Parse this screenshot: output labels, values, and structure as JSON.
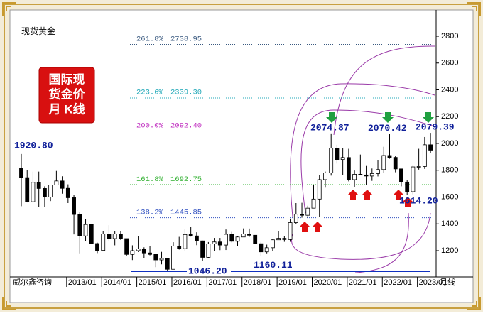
{
  "chart_data": {
    "type": "candlestick",
    "title": "现货黄金",
    "badge": [
      "国际现",
      "货金价",
      "月 K线"
    ],
    "source": "威尔鑫咨询",
    "period": "月线",
    "ylim": [
      1100,
      2880
    ],
    "yticks": [
      1200,
      1400,
      1600,
      1800,
      2000,
      2200,
      2400,
      2600,
      2800
    ],
    "categories": [
      null,
      null,
      null,
      null,
      null,
      null,
      null,
      null,
      "2013/01",
      null,
      null,
      null,
      null,
      null,
      "2014/01",
      null,
      null,
      null,
      null,
      null,
      "2015/01",
      null,
      null,
      null,
      null,
      null,
      "2016/01",
      null,
      null,
      null,
      null,
      null,
      "2017/01",
      null,
      null,
      null,
      null,
      null,
      "2018/01",
      null,
      null,
      null,
      null,
      null,
      "2019/01",
      null,
      null,
      null,
      null,
      null,
      "2020/01",
      null,
      null,
      null,
      null,
      null,
      "2021/01",
      null,
      null,
      null,
      null,
      null,
      "2022/01",
      null,
      null,
      null,
      null,
      null,
      "2023/01",
      null,
      null
    ],
    "open": [
      1813,
      1745,
      1565,
      1710,
      1664,
      1600,
      1690,
      1720,
      1665,
      1595,
      1470,
      1310,
      1395,
      1253,
      1202,
      1325,
      1290,
      1325,
      1290,
      1172,
      1200,
      1213,
      1183,
      1172,
      1131,
      1142,
      1061,
      1235,
      1215,
      1320,
      1310,
      1273,
      1150,
      1250,
      1265,
      1242,
      1322,
      1270,
      1302,
      1325,
      1315,
      1252,
      1191,
      1222,
      1281,
      1292,
      1283,
      1409,
      1472,
      1464,
      1517,
      1585,
      1730,
      1780,
      1965,
      1880,
      1895,
      1730,
      1770,
      1765,
      1757,
      1775,
      1805,
      1910,
      1896,
      1810,
      1712,
      1640,
      1825,
      1828,
      1990
    ],
    "high": [
      1921,
      1804,
      1790,
      1790,
      1680,
      1690,
      1795,
      1755,
      1695,
      1615,
      1488,
      1434,
      1400,
      1260,
      1345,
      1390,
      1345,
      1345,
      1290,
      1240,
      1308,
      1225,
      1232,
      1170,
      1191,
      1142,
      1263,
      1303,
      1362,
      1375,
      1337,
      1275,
      1264,
      1295,
      1295,
      1358,
      1340,
      1310,
      1366,
      1365,
      1310,
      1265,
      1245,
      1284,
      1346,
      1310,
      1439,
      1555,
      1557,
      1535,
      1690,
      1765,
      1790,
      2075,
      1990,
      1965,
      1960,
      1798,
      1917,
      1832,
      1813,
      1877,
      1975,
      2070,
      1910,
      1810,
      1729,
      1833,
      1960,
      2048,
      2079
    ],
    "low": [
      1532,
      1560,
      1565,
      1527,
      1527,
      1570,
      1690,
      1625,
      1555,
      1321,
      1180,
      1270,
      1251,
      1182,
      1202,
      1268,
      1240,
      1280,
      1160,
      1130,
      1190,
      1142,
      1165,
      1077,
      1098,
      1046,
      1071,
      1208,
      1200,
      1305,
      1241,
      1123,
      1146,
      1195,
      1204,
      1205,
      1262,
      1236,
      1304,
      1303,
      1250,
      1160,
      1180,
      1196,
      1281,
      1266,
      1266,
      1400,
      1446,
      1445,
      1517,
      1451,
      1670,
      1760,
      1850,
      1765,
      1717,
      1677,
      1770,
      1688,
      1721,
      1754,
      1780,
      1886,
      1785,
      1680,
      1615,
      1620,
      1805,
      1810,
      1930
    ],
    "close": [
      1745,
      1565,
      1710,
      1664,
      1600,
      1690,
      1720,
      1665,
      1595,
      1470,
      1310,
      1395,
      1253,
      1202,
      1325,
      1290,
      1325,
      1290,
      1172,
      1200,
      1213,
      1183,
      1172,
      1131,
      1142,
      1061,
      1235,
      1215,
      1320,
      1310,
      1273,
      1150,
      1250,
      1265,
      1242,
      1322,
      1270,
      1302,
      1325,
      1315,
      1252,
      1191,
      1222,
      1281,
      1292,
      1283,
      1409,
      1472,
      1464,
      1517,
      1585,
      1730,
      1780,
      1965,
      1880,
      1895,
      1730,
      1770,
      1765,
      1757,
      1775,
      1805,
      1910,
      1896,
      1810,
      1712,
      1640,
      1825,
      1828,
      1990,
      1950
    ],
    "fib_levels": [
      {
        "ratio": "261.8%",
        "value": 2738.95,
        "label": "2738.95",
        "color": "#3a5a80"
      },
      {
        "ratio": "223.6%",
        "value": 2339.3,
        "label": "2339.30",
        "color": "#20a8b8"
      },
      {
        "ratio": "200.0%",
        "value": 2092.4,
        "label": "2092.40",
        "color": "#c030c0"
      },
      {
        "ratio": "161.8%",
        "value": 1692.75,
        "label": "1692.75",
        "color": "#30b030"
      },
      {
        "ratio": "138.2%",
        "value": 1445.85,
        "label": "1445.85",
        "color": "#3050c0"
      }
    ],
    "annotations": [
      {
        "value": 1920.8,
        "label": "1920.80"
      },
      {
        "value": 2074.87,
        "label": "2074.87"
      },
      {
        "value": 2070.42,
        "label": "2070.42"
      },
      {
        "value": 2079.39,
        "label": "2079.39"
      },
      {
        "value": 1614.2,
        "label": "1614.20"
      },
      {
        "value": 1160.11,
        "label": "1160.11"
      },
      {
        "value": 1046.2,
        "label": "1046.20"
      }
    ]
  }
}
